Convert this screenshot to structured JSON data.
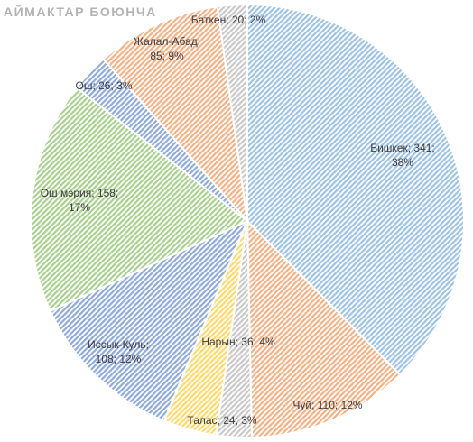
{
  "chart_data": {
    "type": "pie",
    "title": "АЙМАКТАР БОЮНЧА",
    "slices": [
      {
        "name": "Бишкек",
        "value": 341,
        "percent": "38%",
        "color": "#9dc3e6"
      },
      {
        "name": "Чуй",
        "value": 110,
        "percent": "12%",
        "color": "#f4b183"
      },
      {
        "name": "Талас",
        "value": 24,
        "percent": "3%",
        "color": "#c9c9c9"
      },
      {
        "name": "Нарын",
        "value": 36,
        "percent": "4%",
        "color": "#ffd966"
      },
      {
        "name": "Иссык-Куль",
        "value": 108,
        "percent": "12%",
        "color": "#8faadc"
      },
      {
        "name": "Ош мэрия",
        "value": 158,
        "percent": "17%",
        "color": "#a9d18e"
      },
      {
        "name": "Ош",
        "value": 26,
        "percent": "3%",
        "color": "#8faadc"
      },
      {
        "name": "Жалал-Абад",
        "value": 85,
        "percent": "9%",
        "color": "#f4b183"
      },
      {
        "name": "Баткен",
        "value": 20,
        "percent": "2%",
        "color": "#c9c9c9"
      }
    ],
    "labels": [
      {
        "line1": "Бишкек; 341;",
        "line2": "38%"
      },
      {
        "line1": "Чуй; 110; 12%",
        "line2": ""
      },
      {
        "line1": "Талас; 24; 3%",
        "line2": ""
      },
      {
        "line1": "Нарын; 36; 4%",
        "line2": ""
      },
      {
        "line1": "Иссык-Куль;",
        "line2": "108; 12%"
      },
      {
        "line1": "Ош мэрия; 158;",
        "line2": "17%"
      },
      {
        "line1": "Ош; 26; 3%",
        "line2": ""
      },
      {
        "line1": "Жалал-Абад;",
        "line2": "85; 9%"
      },
      {
        "line1": "Баткен; 20; 2%",
        "line2": ""
      }
    ],
    "start_angle_deg": 0,
    "direction": "clockwise",
    "fill_style": "diagonal-hatch",
    "legend": "none"
  }
}
